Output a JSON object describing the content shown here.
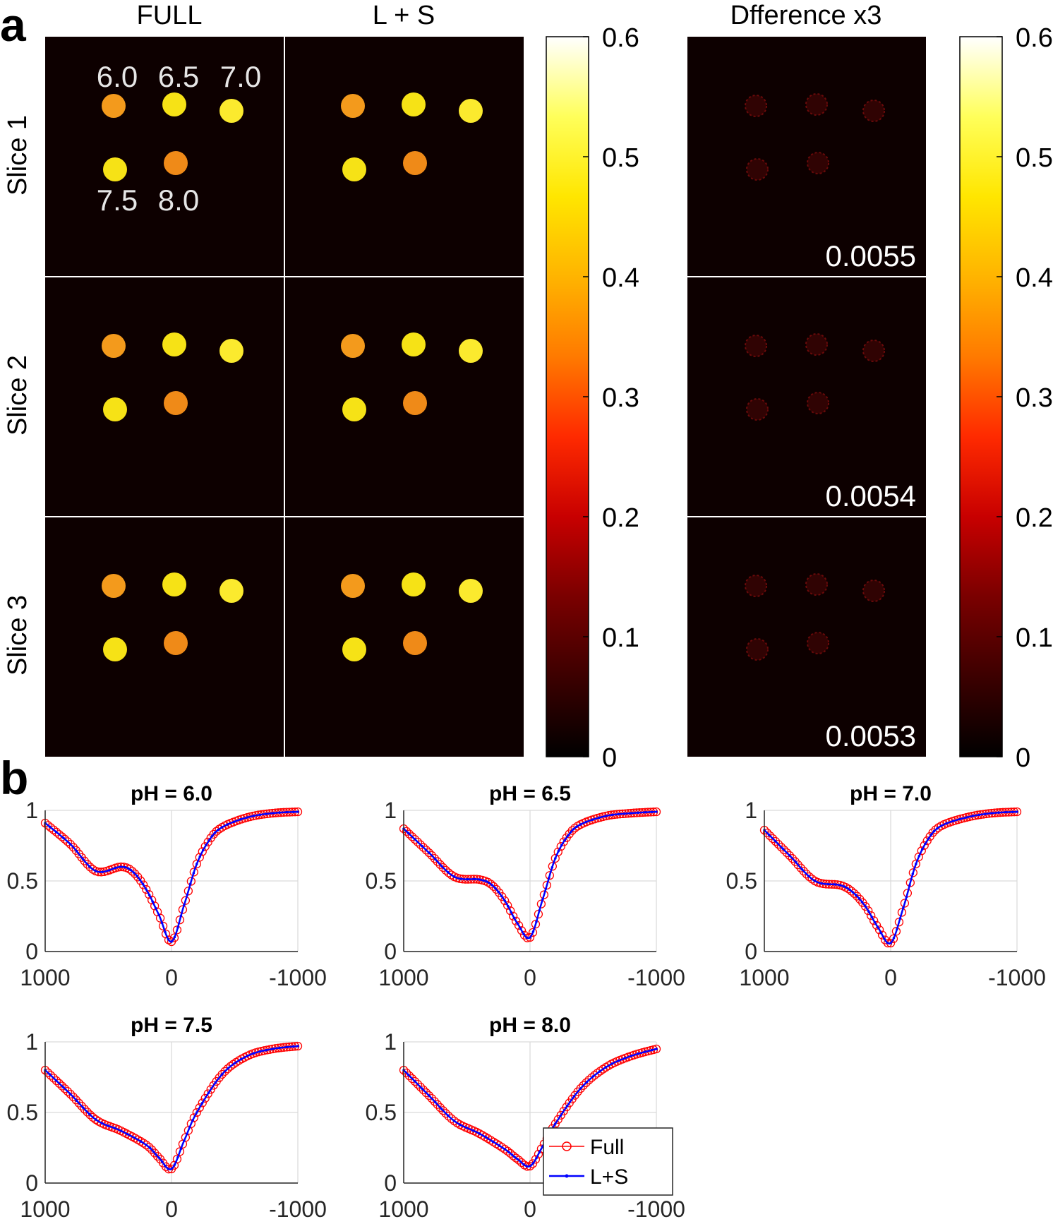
{
  "panel_labels": {
    "a": "a",
    "b": "b"
  },
  "colors": {
    "image_bg": "#0d0000",
    "spot_orange": "#f39a1c",
    "spot_orange_dark": "#ef8a18",
    "spot_yellow": "#f6e216",
    "spot_yellow_light": "#fbea2e",
    "full_marker": "#ff0000",
    "ls_line": "#0000ff",
    "grid": "#d9d9d9",
    "colorbar_stops": [
      "#000000",
      "#3c0000",
      "#7a0000",
      "#c80000",
      "#ff2a00",
      "#ff7a00",
      "#ffb400",
      "#ffe600",
      "#ffff5a",
      "#ffffff"
    ]
  },
  "panel_a": {
    "column_titles": [
      "FULL",
      "L + S",
      "Dfference x3"
    ],
    "row_labels": [
      "Slice 1",
      "Slice 2",
      "Slice 3"
    ],
    "ph_labels": [
      "6.0",
      "6.5",
      "7.0",
      "7.5",
      "8.0"
    ],
    "difference_values": [
      "0.0055",
      "0.0054",
      "0.0053"
    ],
    "colorbar_ticks": [
      "0.6",
      "0.5",
      "0.4",
      "0.3",
      "0.2",
      "0.1",
      "0"
    ],
    "colorbar_range": [
      0,
      0.6
    ]
  },
  "chart_data": [
    {
      "type": "line",
      "title": "pH = 6.0",
      "xlim": [
        1000,
        -1000
      ],
      "ylim": [
        0,
        1
      ],
      "x_ticks": [
        "1000",
        "0",
        "-1000"
      ],
      "y_ticks": [
        "0",
        "0.5",
        "1"
      ],
      "grid": true,
      "series": [
        {
          "name": "Full",
          "marker": "circle",
          "x": [
            1000,
            800,
            600,
            400,
            300,
            200,
            100,
            0,
            -100,
            -200,
            -300,
            -400,
            -600,
            -800,
            -1000
          ],
          "y": [
            0.91,
            0.76,
            0.57,
            0.6,
            0.56,
            0.44,
            0.26,
            0.07,
            0.33,
            0.62,
            0.79,
            0.88,
            0.95,
            0.98,
            0.99
          ]
        },
        {
          "name": "L+S",
          "marker": "dot",
          "x": [
            1000,
            800,
            600,
            400,
            300,
            200,
            100,
            0,
            -100,
            -200,
            -300,
            -400,
            -600,
            -800,
            -1000
          ],
          "y": [
            0.91,
            0.76,
            0.57,
            0.6,
            0.56,
            0.44,
            0.26,
            0.07,
            0.33,
            0.62,
            0.79,
            0.88,
            0.95,
            0.98,
            0.99
          ]
        }
      ]
    },
    {
      "type": "line",
      "title": "pH = 6.5",
      "xlim": [
        1000,
        -1000
      ],
      "ylim": [
        0,
        1
      ],
      "x_ticks": [
        "1000",
        "0",
        "-1000"
      ],
      "y_ticks": [
        "0",
        "0.5",
        "1"
      ],
      "grid": true,
      "series": [
        {
          "name": "Full",
          "marker": "circle",
          "x": [
            1000,
            800,
            600,
            400,
            300,
            200,
            100,
            0,
            -100,
            -200,
            -300,
            -400,
            -600,
            -800,
            -1000
          ],
          "y": [
            0.87,
            0.7,
            0.53,
            0.51,
            0.47,
            0.36,
            0.2,
            0.1,
            0.37,
            0.66,
            0.82,
            0.9,
            0.96,
            0.98,
            0.99
          ]
        },
        {
          "name": "L+S",
          "marker": "dot",
          "x": [
            1000,
            800,
            600,
            400,
            300,
            200,
            100,
            0,
            -100,
            -200,
            -300,
            -400,
            -600,
            -800,
            -1000
          ],
          "y": [
            0.87,
            0.7,
            0.53,
            0.51,
            0.47,
            0.36,
            0.2,
            0.1,
            0.37,
            0.66,
            0.82,
            0.9,
            0.96,
            0.98,
            0.99
          ]
        }
      ]
    },
    {
      "type": "line",
      "title": "pH = 7.0",
      "xlim": [
        1000,
        -1000
      ],
      "ylim": [
        0,
        1
      ],
      "x_ticks": [
        "1000",
        "0",
        "-1000"
      ],
      "y_ticks": [
        "0",
        "0.5",
        "1"
      ],
      "grid": true,
      "series": [
        {
          "name": "Full",
          "marker": "circle",
          "x": [
            1000,
            800,
            600,
            400,
            300,
            200,
            100,
            0,
            -100,
            -200,
            -300,
            -400,
            -600,
            -800,
            -1000
          ],
          "y": [
            0.86,
            0.68,
            0.5,
            0.47,
            0.42,
            0.32,
            0.17,
            0.06,
            0.31,
            0.62,
            0.8,
            0.89,
            0.95,
            0.98,
            0.99
          ]
        },
        {
          "name": "L+S",
          "marker": "dot",
          "x": [
            1000,
            800,
            600,
            400,
            300,
            200,
            100,
            0,
            -100,
            -200,
            -300,
            -400,
            -600,
            -800,
            -1000
          ],
          "y": [
            0.86,
            0.68,
            0.5,
            0.47,
            0.42,
            0.32,
            0.17,
            0.06,
            0.31,
            0.62,
            0.8,
            0.89,
            0.95,
            0.98,
            0.99
          ]
        }
      ]
    },
    {
      "type": "line",
      "title": "pH = 7.5",
      "xlim": [
        1000,
        -1000
      ],
      "ylim": [
        0,
        1
      ],
      "x_ticks": [
        "1000",
        "0",
        "-1000"
      ],
      "y_ticks": [
        "0",
        "0.5",
        "1"
      ],
      "grid": true,
      "series": [
        {
          "name": "Full",
          "marker": "circle",
          "x": [
            1000,
            800,
            600,
            400,
            200,
            100,
            0,
            -100,
            -200,
            -400,
            -600,
            -800,
            -1000
          ],
          "y": [
            0.8,
            0.63,
            0.45,
            0.37,
            0.27,
            0.18,
            0.1,
            0.3,
            0.5,
            0.77,
            0.9,
            0.95,
            0.97
          ]
        },
        {
          "name": "L+S",
          "marker": "dot",
          "x": [
            1000,
            800,
            600,
            400,
            200,
            100,
            0,
            -100,
            -200,
            -400,
            -600,
            -800,
            -1000
          ],
          "y": [
            0.8,
            0.63,
            0.45,
            0.37,
            0.27,
            0.18,
            0.1,
            0.3,
            0.5,
            0.77,
            0.9,
            0.95,
            0.97
          ]
        }
      ]
    },
    {
      "type": "line",
      "title": "pH = 8.0",
      "xlim": [
        1000,
        -1000
      ],
      "ylim": [
        0,
        1
      ],
      "x_ticks": [
        "1000",
        "0",
        "-1000"
      ],
      "y_ticks": [
        "0",
        "0.5",
        "1"
      ],
      "grid": true,
      "legend": {
        "placement": "bottom-right",
        "entries": [
          "Full",
          "L+S"
        ]
      },
      "series": [
        {
          "name": "Full",
          "marker": "circle",
          "x": [
            1000,
            800,
            600,
            400,
            200,
            100,
            0,
            -100,
            -200,
            -400,
            -600,
            -800,
            -1000
          ],
          "y": [
            0.8,
            0.62,
            0.44,
            0.35,
            0.24,
            0.17,
            0.12,
            0.26,
            0.42,
            0.67,
            0.82,
            0.9,
            0.95
          ]
        },
        {
          "name": "L+S",
          "marker": "dot",
          "x": [
            1000,
            800,
            600,
            400,
            200,
            100,
            0,
            -100,
            -200,
            -400,
            -600,
            -800,
            -1000
          ],
          "y": [
            0.8,
            0.62,
            0.44,
            0.35,
            0.24,
            0.17,
            0.12,
            0.26,
            0.42,
            0.67,
            0.82,
            0.9,
            0.95
          ]
        }
      ]
    }
  ]
}
